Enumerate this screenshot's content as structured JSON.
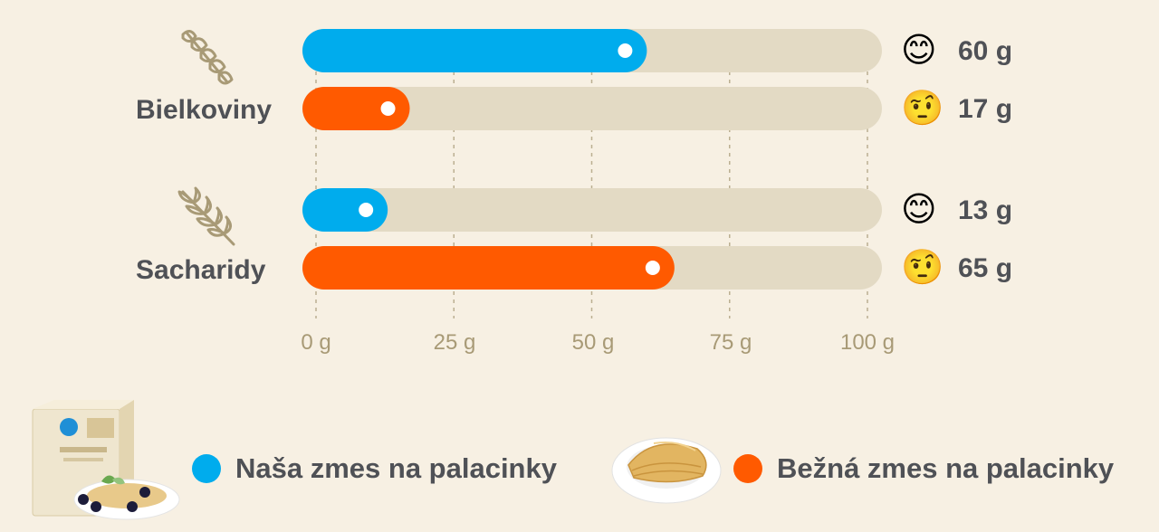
{
  "colors": {
    "ours": "#00aced",
    "common": "#ff5a00",
    "track": "#e3dac4",
    "background": "#f7f0e3",
    "tick": "#a89a76",
    "text": "#4f5156"
  },
  "chart_data": {
    "type": "bar",
    "orientation": "horizontal",
    "categories": [
      "Bielkoviny",
      "Sacharidy"
    ],
    "category_icons": [
      "pasta-icon",
      "wheat-icon"
    ],
    "series": [
      {
        "name": "Naša zmes na palacinky",
        "values": [
          60,
          13
        ],
        "value_labels": [
          "60 g",
          "13 g"
        ],
        "emoji": [
          "😊",
          "😊"
        ],
        "color": "#00aced"
      },
      {
        "name": "Bežná zmes na palacinky",
        "values": [
          17,
          65
        ],
        "value_labels": [
          "17 g",
          "65 g"
        ],
        "emoji": [
          "🤨",
          "🤨"
        ],
        "color": "#ff5a00"
      }
    ],
    "xlim": [
      0,
      100
    ],
    "ticks": [
      0,
      25,
      50,
      75,
      100
    ],
    "tick_labels": [
      "0 g",
      "25 g",
      "50 g",
      "75 g",
      "100 g"
    ],
    "grid": "vertical dashed",
    "legend_placement": "bottom"
  },
  "legend": {
    "ours_label": "Naša zmes na palacinky",
    "common_label": "Bežná zmes na palacinky",
    "ours_image": "pancake-mix-box-image",
    "common_image": "pancake-plate-image"
  }
}
